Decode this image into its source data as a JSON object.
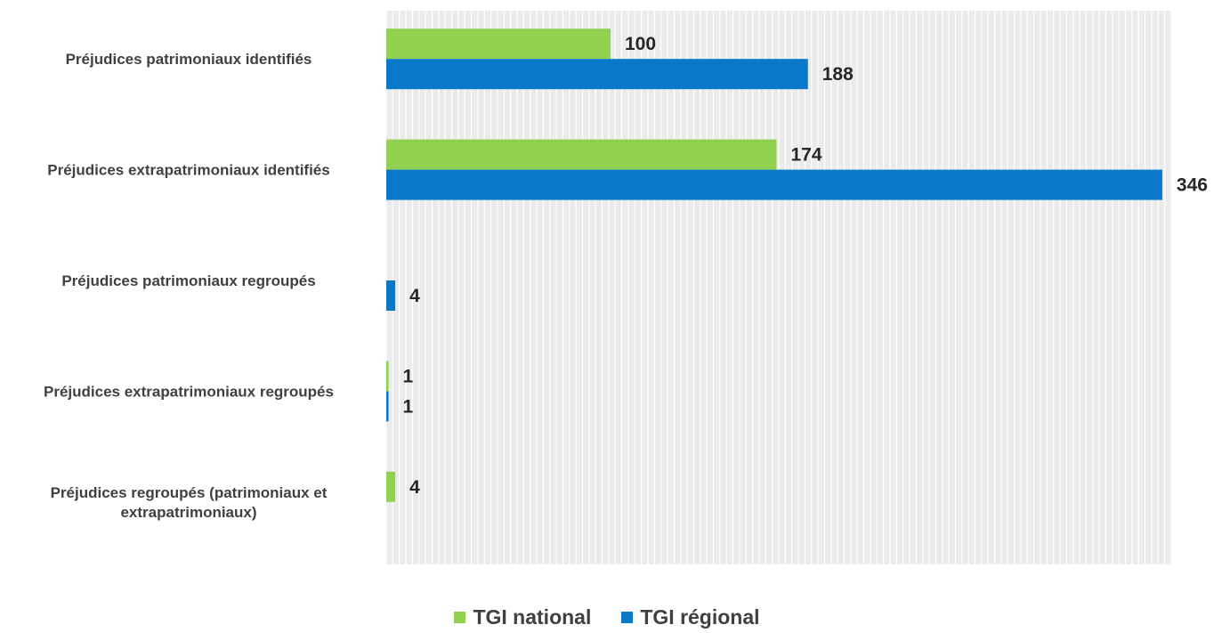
{
  "chart_data": {
    "type": "bar",
    "orientation": "horizontal",
    "categories": [
      [
        "Préjudices patrimoniaux identifiés"
      ],
      [
        "Préjudices extrapatrimoniaux identifiés"
      ],
      [
        "Préjudices patrimoniaux regroupés"
      ],
      [
        "Préjudices extrapatrimoniaux regroupés"
      ],
      [
        "Préjudices regroupés (patrimoniaux et",
        "extrapatrimoniaux)"
      ]
    ],
    "series": [
      {
        "name": "TGI national",
        "color": "#92d050",
        "values": [
          100,
          174,
          null,
          1,
          4
        ]
      },
      {
        "name": "TGI régional",
        "color": "#0a78c8",
        "values": [
          188,
          346,
          4,
          1,
          null
        ]
      }
    ],
    "xlim": [
      0,
      350
    ],
    "grid": true,
    "data_labels": true,
    "legend_position": "bottom"
  }
}
